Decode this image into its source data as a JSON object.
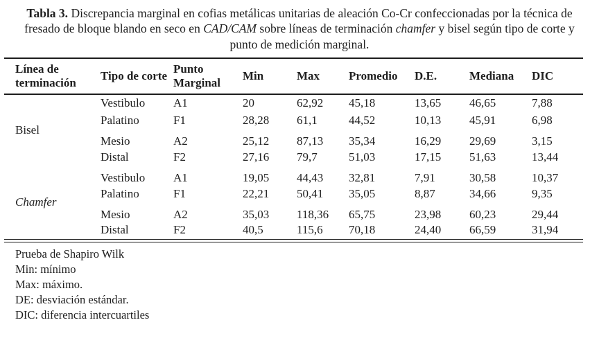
{
  "colors": {
    "background": "#ffffff",
    "text": "#1f1f1f",
    "rule": "#1c1c1c"
  },
  "caption": {
    "segments": [
      {
        "text": "Tabla 3.",
        "style": "bold"
      },
      {
        "text": " Discrepancia marginal en cofias metálicas unitarias de aleación Co-Cr confeccionadas por la técnica de fresado de bloque blando en seco en ",
        "style": "normal"
      },
      {
        "text": "CAD/CAM",
        "style": "italic"
      },
      {
        "text": " sobre líneas de terminación ",
        "style": "normal"
      },
      {
        "text": "chamfer",
        "style": "italic"
      },
      {
        "text": " y bisel según tipo de corte y punto de medición marginal.",
        "style": "normal"
      }
    ]
  },
  "table": {
    "headers": [
      "Línea de terminación",
      "Tipo de corte",
      "Punto Marginal",
      "Min",
      "Max",
      "Promedio",
      "D.E.",
      "Mediana",
      "DIC"
    ],
    "groups": [
      {
        "name": "Bisel",
        "italic": false,
        "rows": [
          {
            "corte": "Vestibulo",
            "punto": "A1",
            "min": "20",
            "max": "62,92",
            "promedio": "45,18",
            "de": "13,65",
            "mediana": "46,65",
            "dic": "7,88",
            "gap": false
          },
          {
            "corte": "Palatino",
            "punto": "F1",
            "min": "28,28",
            "max": "61,1",
            "promedio": "44,52",
            "de": "10,13",
            "mediana": "45,91",
            "dic": "6,98",
            "gap": false
          },
          {
            "corte": "Mesio",
            "punto": "A2",
            "min": "25,12",
            "max": "87,13",
            "promedio": "35,34",
            "de": "16,29",
            "mediana": "29,69",
            "dic": "3,15",
            "gap": true
          },
          {
            "corte": "Distal",
            "punto": "F2",
            "min": "27,16",
            "max": "79,7",
            "promedio": "51,03",
            "de": "17,15",
            "mediana": "51,63",
            "dic": "13,44",
            "gap": false
          }
        ]
      },
      {
        "name": "Chamfer",
        "italic": true,
        "rows": [
          {
            "corte": "Vestibulo",
            "punto": "A1",
            "min": "19,05",
            "max": "44,43",
            "promedio": "32,81",
            "de": "7,91",
            "mediana": "30,58",
            "dic": "10,37",
            "gap": true
          },
          {
            "corte": "Palatino",
            "punto": "F1",
            "min": "22,21",
            "max": "50,41",
            "promedio": "35,05",
            "de": "8,87",
            "mediana": "34,66",
            "dic": "9,35",
            "gap": false
          },
          {
            "corte": "Mesio",
            "punto": "A2",
            "min": "35,03",
            "max": "118,36",
            "promedio": "65,75",
            "de": "23,98",
            "mediana": "60,23",
            "dic": "29,44",
            "gap": true
          },
          {
            "corte": "Distal",
            "punto": "F2",
            "min": "40,5",
            "max": "115,6",
            "promedio": "70,18",
            "de": "24,40",
            "mediana": "66,59",
            "dic": "31,94",
            "gap": false
          }
        ]
      }
    ]
  },
  "footnotes": [
    "Prueba de Shapiro Wilk",
    "Min: mínimo",
    "Max: máximo.",
    "DE: desviación estándar.",
    "DIC: diferencia intercuartiles"
  ]
}
